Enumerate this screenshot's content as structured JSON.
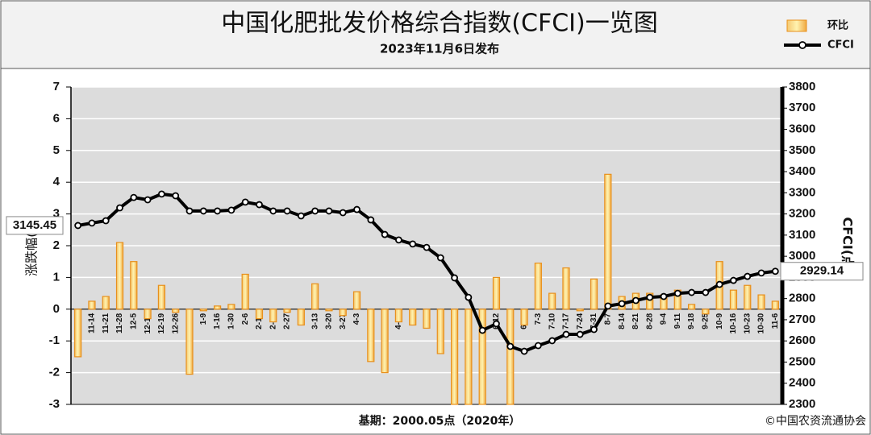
{
  "chart_data": {
    "type": "bar",
    "title": "中国化肥批发价格综合指数(CFCI)一览图",
    "subtitle": "2023年11月6日发布",
    "ylabel": "涨跌幅(%)",
    "y2label": "CFCI(点)",
    "footnote": "基期：2000.05点（2020年）",
    "source": "©中国农资流通协会",
    "categories": [
      "11-7",
      "11-14",
      "11-21",
      "11-28",
      "12-5",
      "12-12",
      "12-19",
      "12-26",
      "2023-1-2",
      "1-9",
      "1-16",
      "1-30",
      "2-6",
      "2-13",
      "2-20",
      "2-27",
      "3-6",
      "3-13",
      "3-20",
      "3-27",
      "4-3",
      "4-10",
      "4-17",
      "4-24",
      "5-1",
      "5-8",
      "5-16",
      "5-22",
      "5-29",
      "6-5",
      "6-12",
      "6-19",
      "6-26",
      "7-3",
      "7-10",
      "7-17",
      "7-24",
      "7-31",
      "8-7",
      "8-14",
      "8-21",
      "8-28",
      "9-4",
      "9-11",
      "9-18",
      "9-25",
      "10-9",
      "10-16",
      "10-23",
      "10-30",
      "11-6"
    ],
    "series": [
      {
        "name": "环比",
        "type": "bar",
        "color": "#e8901c",
        "values": [
          -1.5,
          0.25,
          0.4,
          2.1,
          1.5,
          -0.3,
          0.75,
          -0.1,
          -2.05,
          -0.05,
          0.1,
          0.15,
          1.1,
          -0.3,
          -0.4,
          -0.1,
          -0.5,
          0.8,
          -0.05,
          -0.2,
          0.55,
          -1.65,
          -2.0,
          -0.4,
          -0.5,
          -0.6,
          -1.4,
          -3,
          -3,
          -3,
          1.0,
          -3,
          -0.5,
          1.45,
          0.5,
          1.3,
          -0.05,
          0.95,
          4.25,
          0.4,
          0.5,
          0.5,
          0.45,
          0.6,
          0.15,
          -0.15,
          1.5,
          0.6,
          0.75,
          0.45,
          0.25
        ]
      },
      {
        "name": "CFCI",
        "type": "line",
        "axis": "y2",
        "color": "#000000",
        "values": [
          3145.45,
          3157,
          3168,
          3229,
          3278,
          3267,
          3294,
          3286,
          3214,
          3214,
          3214,
          3218,
          3256,
          3244,
          3214,
          3214,
          3191,
          3214,
          3214,
          3206,
          3221,
          3172,
          3103,
          3077,
          3058,
          3042,
          2993,
          2898,
          2806,
          2650,
          2681,
          2574,
          2551,
          2578,
          2601,
          2631,
          2631,
          2654,
          2765,
          2776,
          2791,
          2806,
          2810,
          2825,
          2829,
          2829,
          2867,
          2886,
          2905,
          2921,
          2929.14
        ]
      }
    ],
    "ylim": [
      -3,
      7
    ],
    "yticks": [
      -3,
      -2,
      -1,
      0,
      1,
      2,
      3,
      4,
      5,
      6,
      7
    ],
    "y2lim": [
      2300,
      3800
    ],
    "y2ticks": [
      2300,
      2400,
      2500,
      2600,
      2700,
      2800,
      2900,
      3000,
      3100,
      3200,
      3300,
      3400,
      3500,
      3600,
      3700,
      3800
    ],
    "grid": true,
    "legend": "top-right"
  }
}
